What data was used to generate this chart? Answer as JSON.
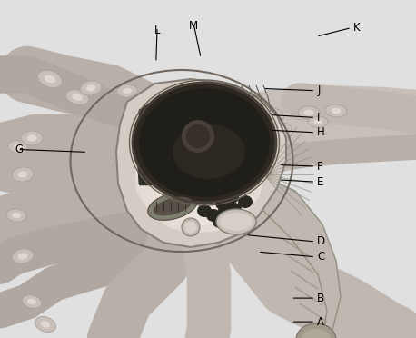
{
  "figsize": [
    4.58,
    3.72
  ],
  "dpi": 100,
  "bg_color": "#e8e8e8",
  "label_specs": {
    "A": {
      "lp": [
        0.758,
        0.952
      ],
      "le": [
        0.7,
        0.952
      ]
    },
    "B": {
      "lp": [
        0.758,
        0.882
      ],
      "le": [
        0.7,
        0.882
      ]
    },
    "C": {
      "lp": [
        0.758,
        0.76
      ],
      "le": [
        0.62,
        0.745
      ]
    },
    "D": {
      "lp": [
        0.758,
        0.715
      ],
      "le": [
        0.59,
        0.695
      ]
    },
    "E": {
      "lp": [
        0.758,
        0.538
      ],
      "le": [
        0.67,
        0.532
      ]
    },
    "F": {
      "lp": [
        0.758,
        0.492
      ],
      "le": [
        0.67,
        0.488
      ]
    },
    "G": {
      "lp": [
        0.042,
        0.442
      ],
      "le": [
        0.21,
        0.45
      ]
    },
    "H": {
      "lp": [
        0.758,
        0.392
      ],
      "le": [
        0.648,
        0.385
      ]
    },
    "I": {
      "lp": [
        0.758,
        0.348
      ],
      "le": [
        0.648,
        0.34
      ]
    },
    "J": {
      "lp": [
        0.758,
        0.268
      ],
      "le": [
        0.632,
        0.262
      ]
    },
    "K": {
      "lp": [
        0.845,
        0.082
      ],
      "le": [
        0.76,
        0.108
      ]
    },
    "L": {
      "lp": [
        0.378,
        0.08
      ],
      "le": [
        0.375,
        0.185
      ]
    },
    "M": {
      "lp": [
        0.465,
        0.068
      ],
      "le": [
        0.483,
        0.172
      ]
    }
  },
  "font_size": 8.5
}
